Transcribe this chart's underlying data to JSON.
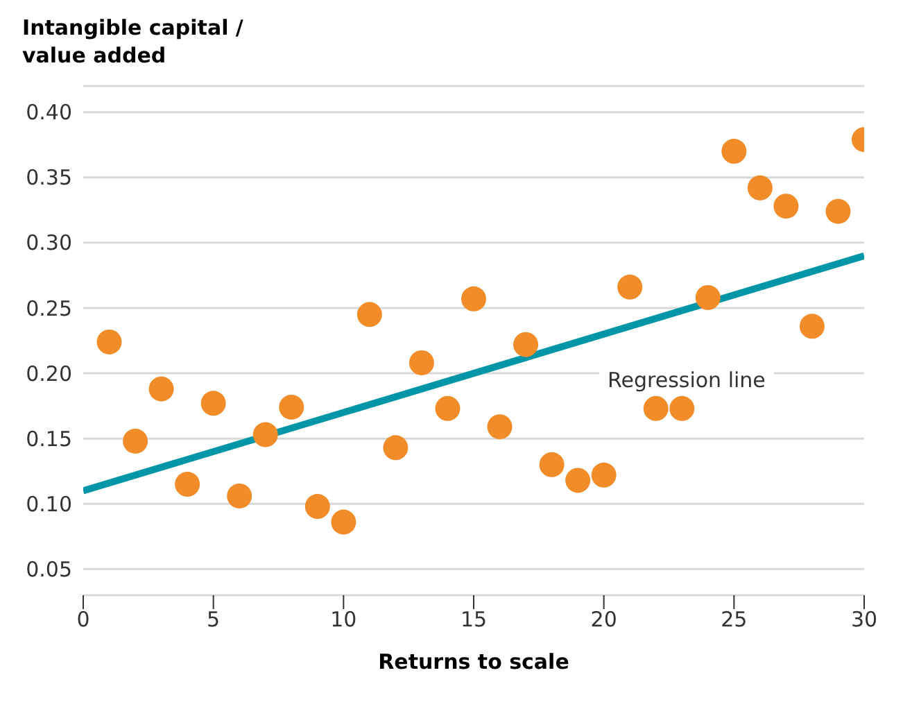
{
  "chart_data": {
    "type": "scatter",
    "ylabel": "Intangible capital /\nvalue added",
    "xlabel": "Returns to scale",
    "xlim": [
      0,
      30
    ],
    "xticks": [
      0,
      5,
      10,
      15,
      20,
      25,
      30
    ],
    "ylim": [
      0.03,
      0.42
    ],
    "yticks": [
      {
        "value": 0.05,
        "label": "0.05"
      },
      {
        "value": 0.1,
        "label": "0.10"
      },
      {
        "value": 0.15,
        "label": "0.15"
      },
      {
        "value": 0.2,
        "label": "0.20"
      },
      {
        "value": 0.25,
        "label": "0.25"
      },
      {
        "value": 0.3,
        "label": "0.30"
      },
      {
        "value": 0.35,
        "label": "0.35"
      },
      {
        "value": 0.4,
        "label": "0.40"
      }
    ],
    "grid": "y",
    "legend": false,
    "marker": "circle",
    "annotations": [
      "Regression line"
    ],
    "series": [
      {
        "color": "#f28c28",
        "x": [
          1,
          2,
          3,
          4,
          5,
          6,
          7,
          8,
          9,
          10,
          11,
          12,
          13,
          14,
          15,
          16,
          17,
          18,
          19,
          20,
          21,
          22,
          23,
          24,
          25,
          26,
          27,
          28,
          29,
          30
        ],
        "values": [
          0.224,
          0.148,
          0.188,
          0.115,
          0.177,
          0.106,
          0.153,
          0.174,
          0.098,
          0.086,
          0.245,
          0.143,
          0.208,
          0.173,
          0.257,
          0.159,
          0.222,
          0.13,
          0.118,
          0.122,
          0.266,
          0.173,
          0.173,
          0.258,
          0.37,
          0.342,
          0.328,
          0.236,
          0.324,
          0.379
        ]
      },
      {
        "type": "line",
        "color": "#0096a8",
        "x": [
          0,
          30
        ],
        "values": [
          0.11,
          0.29
        ],
        "marker": "none",
        "line_style": "solid"
      }
    ]
  }
}
